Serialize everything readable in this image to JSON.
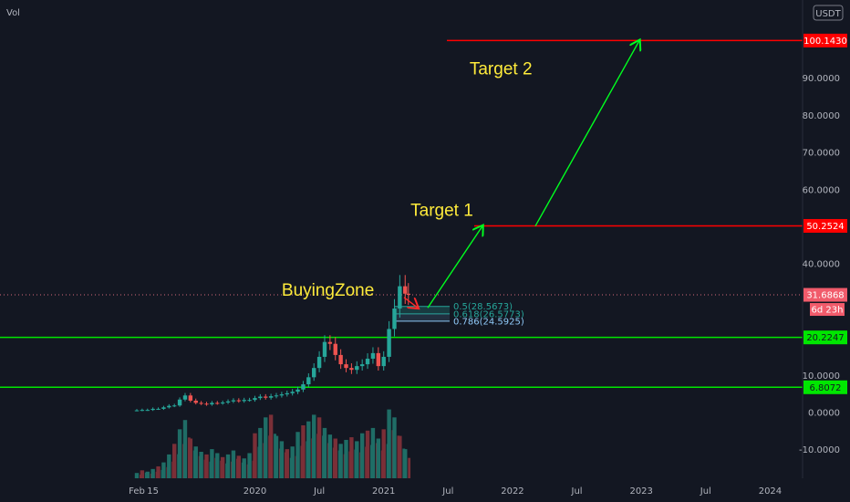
{
  "header": {
    "vol_label": "Vol"
  },
  "chart_data": {
    "type": "candlestick",
    "currency": "USDT",
    "y_ticks": [
      "90.0000",
      "80.0000",
      "70.0000",
      "60.0000",
      "40.0000",
      "10.0000",
      "0.0000",
      "-10.0000"
    ],
    "y_tick_values": [
      90,
      80,
      70,
      60,
      40,
      10,
      0,
      -10
    ],
    "x_ticks": [
      "Feb",
      "15",
      "2020",
      "Jul",
      "2021",
      "Jul",
      "2022",
      "Jul",
      "2023",
      "Jul",
      "2024"
    ],
    "x_tick_months": [
      1,
      2.5,
      12,
      18,
      24,
      30,
      36,
      42,
      48,
      54,
      60
    ],
    "price_levels": [
      {
        "label": "100.1430",
        "value": 100.143,
        "color": "#ff0000"
      },
      {
        "label": "50.2524",
        "value": 50.2524,
        "color": "#ff0000"
      },
      {
        "label": "20.2247",
        "value": 20.2247,
        "color": "#00e600"
      },
      {
        "label": "6.8072",
        "value": 6.8072,
        "color": "#00e600"
      }
    ],
    "current_price": {
      "label": "31.6868",
      "value": 31.6868,
      "countdown": "6d 23h"
    },
    "fib_levels": [
      {
        "label": "0.5(28.5673)",
        "value": 28.5673,
        "color": "#26a69a"
      },
      {
        "label": "0.618(26.5773)",
        "value": 26.5773,
        "color": "#26a69a"
      },
      {
        "label": "0.786(24.5925)",
        "value": 24.5925,
        "color": "#90caf9"
      }
    ],
    "annotations": [
      {
        "text": "Target 2",
        "month": 32,
        "value": 91
      },
      {
        "text": "Target 1",
        "month": 26.5,
        "value": 53
      },
      {
        "text": "BuyingZone",
        "month": 14.5,
        "value": 31.5
      }
    ],
    "price_series": [
      [
        1,
        0.6
      ],
      [
        1.5,
        0.7
      ],
      [
        2,
        0.7
      ],
      [
        2.5,
        1.0
      ],
      [
        3,
        1.0
      ],
      [
        3.5,
        1.4
      ],
      [
        4,
        1.8
      ],
      [
        4.5,
        1.9
      ],
      [
        5,
        3.5
      ],
      [
        5.5,
        4.6
      ],
      [
        6,
        3.2
      ],
      [
        6.5,
        2.6
      ],
      [
        7,
        2.4
      ],
      [
        7.5,
        2.2
      ],
      [
        8,
        2.6
      ],
      [
        8.5,
        2.5
      ],
      [
        9,
        2.7
      ],
      [
        9.5,
        3.0
      ],
      [
        10,
        3.3
      ],
      [
        10.5,
        3.1
      ],
      [
        11,
        3.4
      ],
      [
        11.5,
        3.4
      ],
      [
        12,
        3.9
      ],
      [
        12.5,
        4.3
      ],
      [
        13,
        4.0
      ],
      [
        13.5,
        4.4
      ],
      [
        14,
        4.6
      ],
      [
        14.5,
        4.9
      ],
      [
        15,
        5.2
      ],
      [
        15.5,
        5.6
      ],
      [
        16,
        6.2
      ],
      [
        16.5,
        7.6
      ],
      [
        17,
        9.5
      ],
      [
        17.5,
        12.0
      ],
      [
        18,
        15.0
      ],
      [
        18.5,
        19.0
      ],
      [
        19,
        18.5
      ],
      [
        19.5,
        15.5
      ],
      [
        20,
        13.0
      ],
      [
        20.5,
        12.0
      ],
      [
        21,
        11.5
      ],
      [
        21.5,
        12.5
      ],
      [
        22,
        13.0
      ],
      [
        22.5,
        14.5
      ],
      [
        23,
        16.0
      ],
      [
        23.5,
        12.5
      ],
      [
        24,
        15.0
      ],
      [
        24.5,
        22.5
      ],
      [
        25,
        28.0
      ],
      [
        25.5,
        34.0
      ],
      [
        26,
        32.0
      ],
      [
        26.3,
        31.7
      ]
    ],
    "volume_series": [
      [
        1,
        4
      ],
      [
        1.5,
        6
      ],
      [
        2,
        5
      ],
      [
        2.5,
        7
      ],
      [
        3,
        9
      ],
      [
        3.5,
        12
      ],
      [
        4,
        18
      ],
      [
        4.5,
        26
      ],
      [
        5,
        37
      ],
      [
        5.5,
        44
      ],
      [
        6,
        30
      ],
      [
        6.5,
        24
      ],
      [
        7,
        20
      ],
      [
        7.5,
        18
      ],
      [
        8,
        22
      ],
      [
        8.5,
        19
      ],
      [
        9,
        16
      ],
      [
        9.5,
        18
      ],
      [
        10,
        21
      ],
      [
        10.5,
        17
      ],
      [
        11,
        15
      ],
      [
        11.5,
        19
      ],
      [
        12,
        34
      ],
      [
        12.5,
        38
      ],
      [
        13,
        46
      ],
      [
        13.5,
        48
      ],
      [
        14,
        32
      ],
      [
        14.5,
        28
      ],
      [
        15,
        22
      ],
      [
        15.5,
        24
      ],
      [
        16,
        35
      ],
      [
        16.5,
        40
      ],
      [
        17,
        43
      ],
      [
        17.5,
        48
      ],
      [
        18,
        46
      ],
      [
        18.5,
        38
      ],
      [
        19,
        33
      ],
      [
        19.5,
        30
      ],
      [
        20,
        26
      ],
      [
        20.5,
        29
      ],
      [
        21,
        31
      ],
      [
        21.5,
        28
      ],
      [
        22,
        34
      ],
      [
        22.5,
        36
      ],
      [
        23,
        38
      ],
      [
        23.5,
        30
      ],
      [
        24,
        37
      ],
      [
        24.5,
        52
      ],
      [
        25,
        46
      ],
      [
        25.5,
        32
      ],
      [
        26,
        22
      ]
    ],
    "scale": {
      "price_min": -15,
      "price_max": 105,
      "months_start": 0,
      "months_end": 62
    }
  }
}
